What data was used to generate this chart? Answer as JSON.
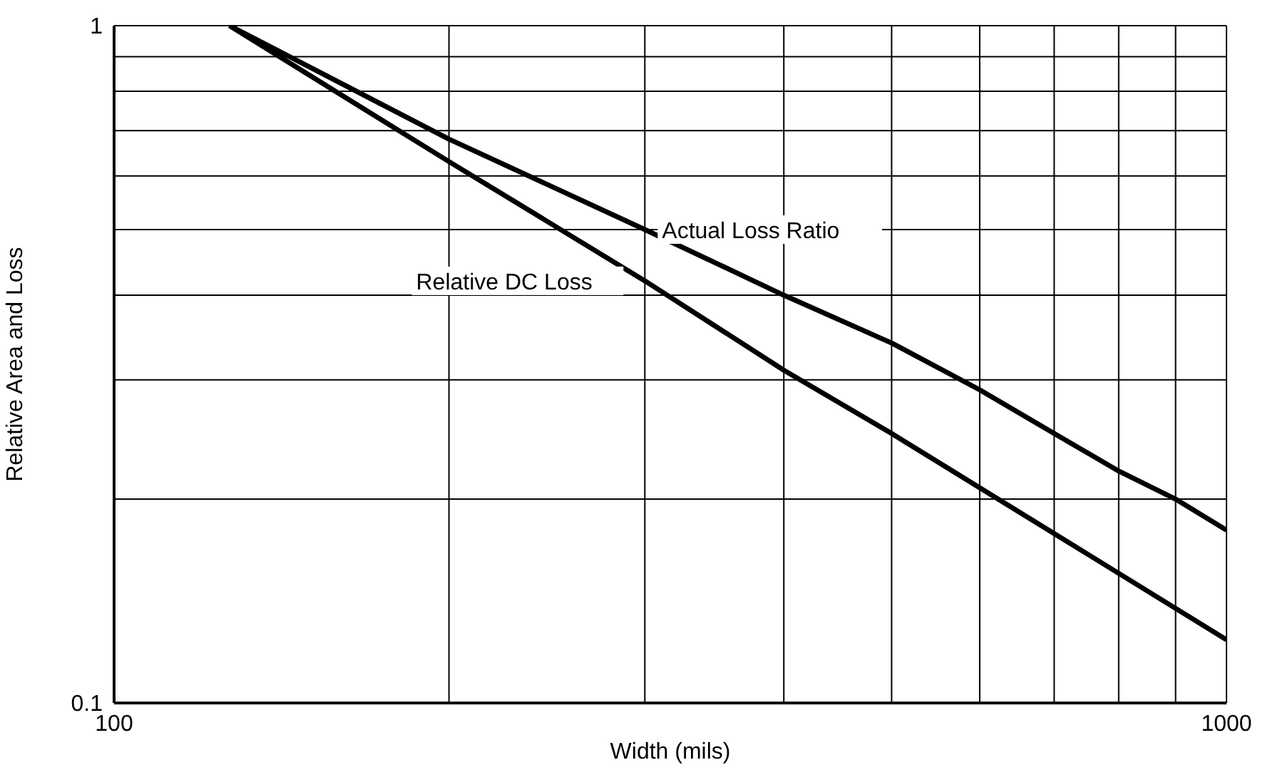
{
  "chart_data": {
    "type": "line",
    "xlabel": "Width (mils)",
    "ylabel": "Relative Area and Loss",
    "log": "xy",
    "grid": true,
    "xlim": [
      100,
      1000
    ],
    "xticks": [
      100,
      {
        "value": 200,
        "label": null
      },
      {
        "value": 300,
        "label": null
      },
      {
        "value": 400,
        "label": null
      },
      {
        "value": 500,
        "label": null
      },
      {
        "value": 600,
        "label": null
      },
      {
        "value": 700,
        "label": null
      },
      {
        "value": 800,
        "label": null
      },
      {
        "value": 900,
        "label": null
      },
      1000
    ],
    "ylim": [
      0.1,
      1
    ],
    "yticks": [
      0.1,
      {
        "value": 0.2,
        "label": null
      },
      {
        "value": 0.3,
        "label": null
      },
      {
        "value": 0.4,
        "label": null
      },
      {
        "value": 0.5,
        "label": null
      },
      {
        "value": 0.6,
        "label": null
      },
      {
        "value": 0.7,
        "label": null
      },
      {
        "value": 0.8,
        "label": null
      },
      {
        "value": 0.9,
        "label": null
      },
      1
    ],
    "series": [
      {
        "name": "Actual Loss Ratio",
        "color": "#000000",
        "x": [
          127,
          200,
          300,
          400,
          500,
          600,
          700,
          800,
          900,
          1000
        ],
        "values": [
          1,
          0.68,
          0.5,
          0.4,
          0.34,
          0.29,
          0.25,
          0.22,
          0.2,
          0.18
        ]
      },
      {
        "name": "Relative DC Loss",
        "color": "#000000",
        "x": [
          127,
          200,
          300,
          400,
          500,
          1000
        ],
        "values": [
          1,
          0.63,
          0.42,
          0.31,
          0.25,
          0.124
        ]
      }
    ]
  }
}
